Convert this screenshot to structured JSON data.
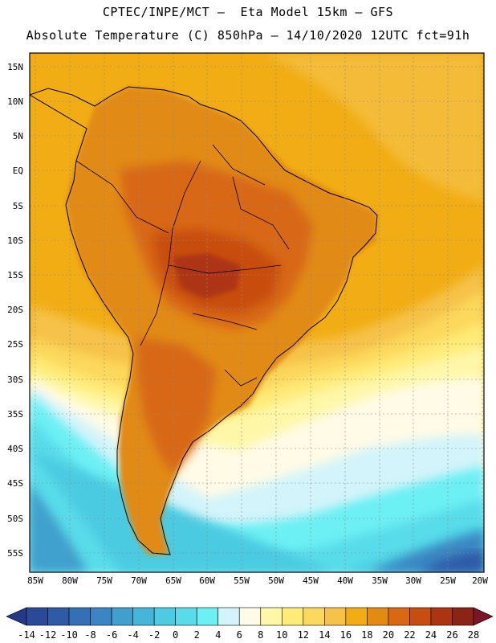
{
  "title_line1": "CPTEC/INPE/MCT –  Eta Model 15km – GFS",
  "title_line2": "Absolute Temperature (C) 850hPa – 14/10/2020 12UTC fct=91h",
  "lat_labels": [
    "15N",
    "10N",
    "5N",
    "EQ",
    "5S",
    "10S",
    "15S",
    "20S",
    "25S",
    "30S",
    "35S",
    "40S",
    "45S",
    "50S",
    "55S"
  ],
  "lon_labels": [
    "85W",
    "80W",
    "75W",
    "70W",
    "65W",
    "60W",
    "55W",
    "50W",
    "45W",
    "40W",
    "35W",
    "30W",
    "25W",
    "20W"
  ],
  "colorbar": {
    "labels": [
      "-14",
      "-12",
      "-10",
      "-8",
      "-6",
      "-4",
      "-2",
      "0",
      "2",
      "4",
      "6",
      "8",
      "10",
      "12",
      "14",
      "16",
      "18",
      "20",
      "22",
      "24",
      "26",
      "28"
    ],
    "colors": [
      "#2a4a96",
      "#2f5aa6",
      "#3570b4",
      "#3a86c2",
      "#3fa0ce",
      "#46b6d8",
      "#4ccbe2",
      "#58dcea",
      "#6cf0f4",
      "#d2f4fa",
      "#fffbe6",
      "#fff7a8",
      "#ffeb78",
      "#fcd85c",
      "#f6c248",
      "#f2ad14",
      "#e28a12",
      "#d86812",
      "#c84e10",
      "#ad3412",
      "#8a2414"
    ],
    "under_color": "#24398a",
    "over_color": "#7a1426"
  }
}
